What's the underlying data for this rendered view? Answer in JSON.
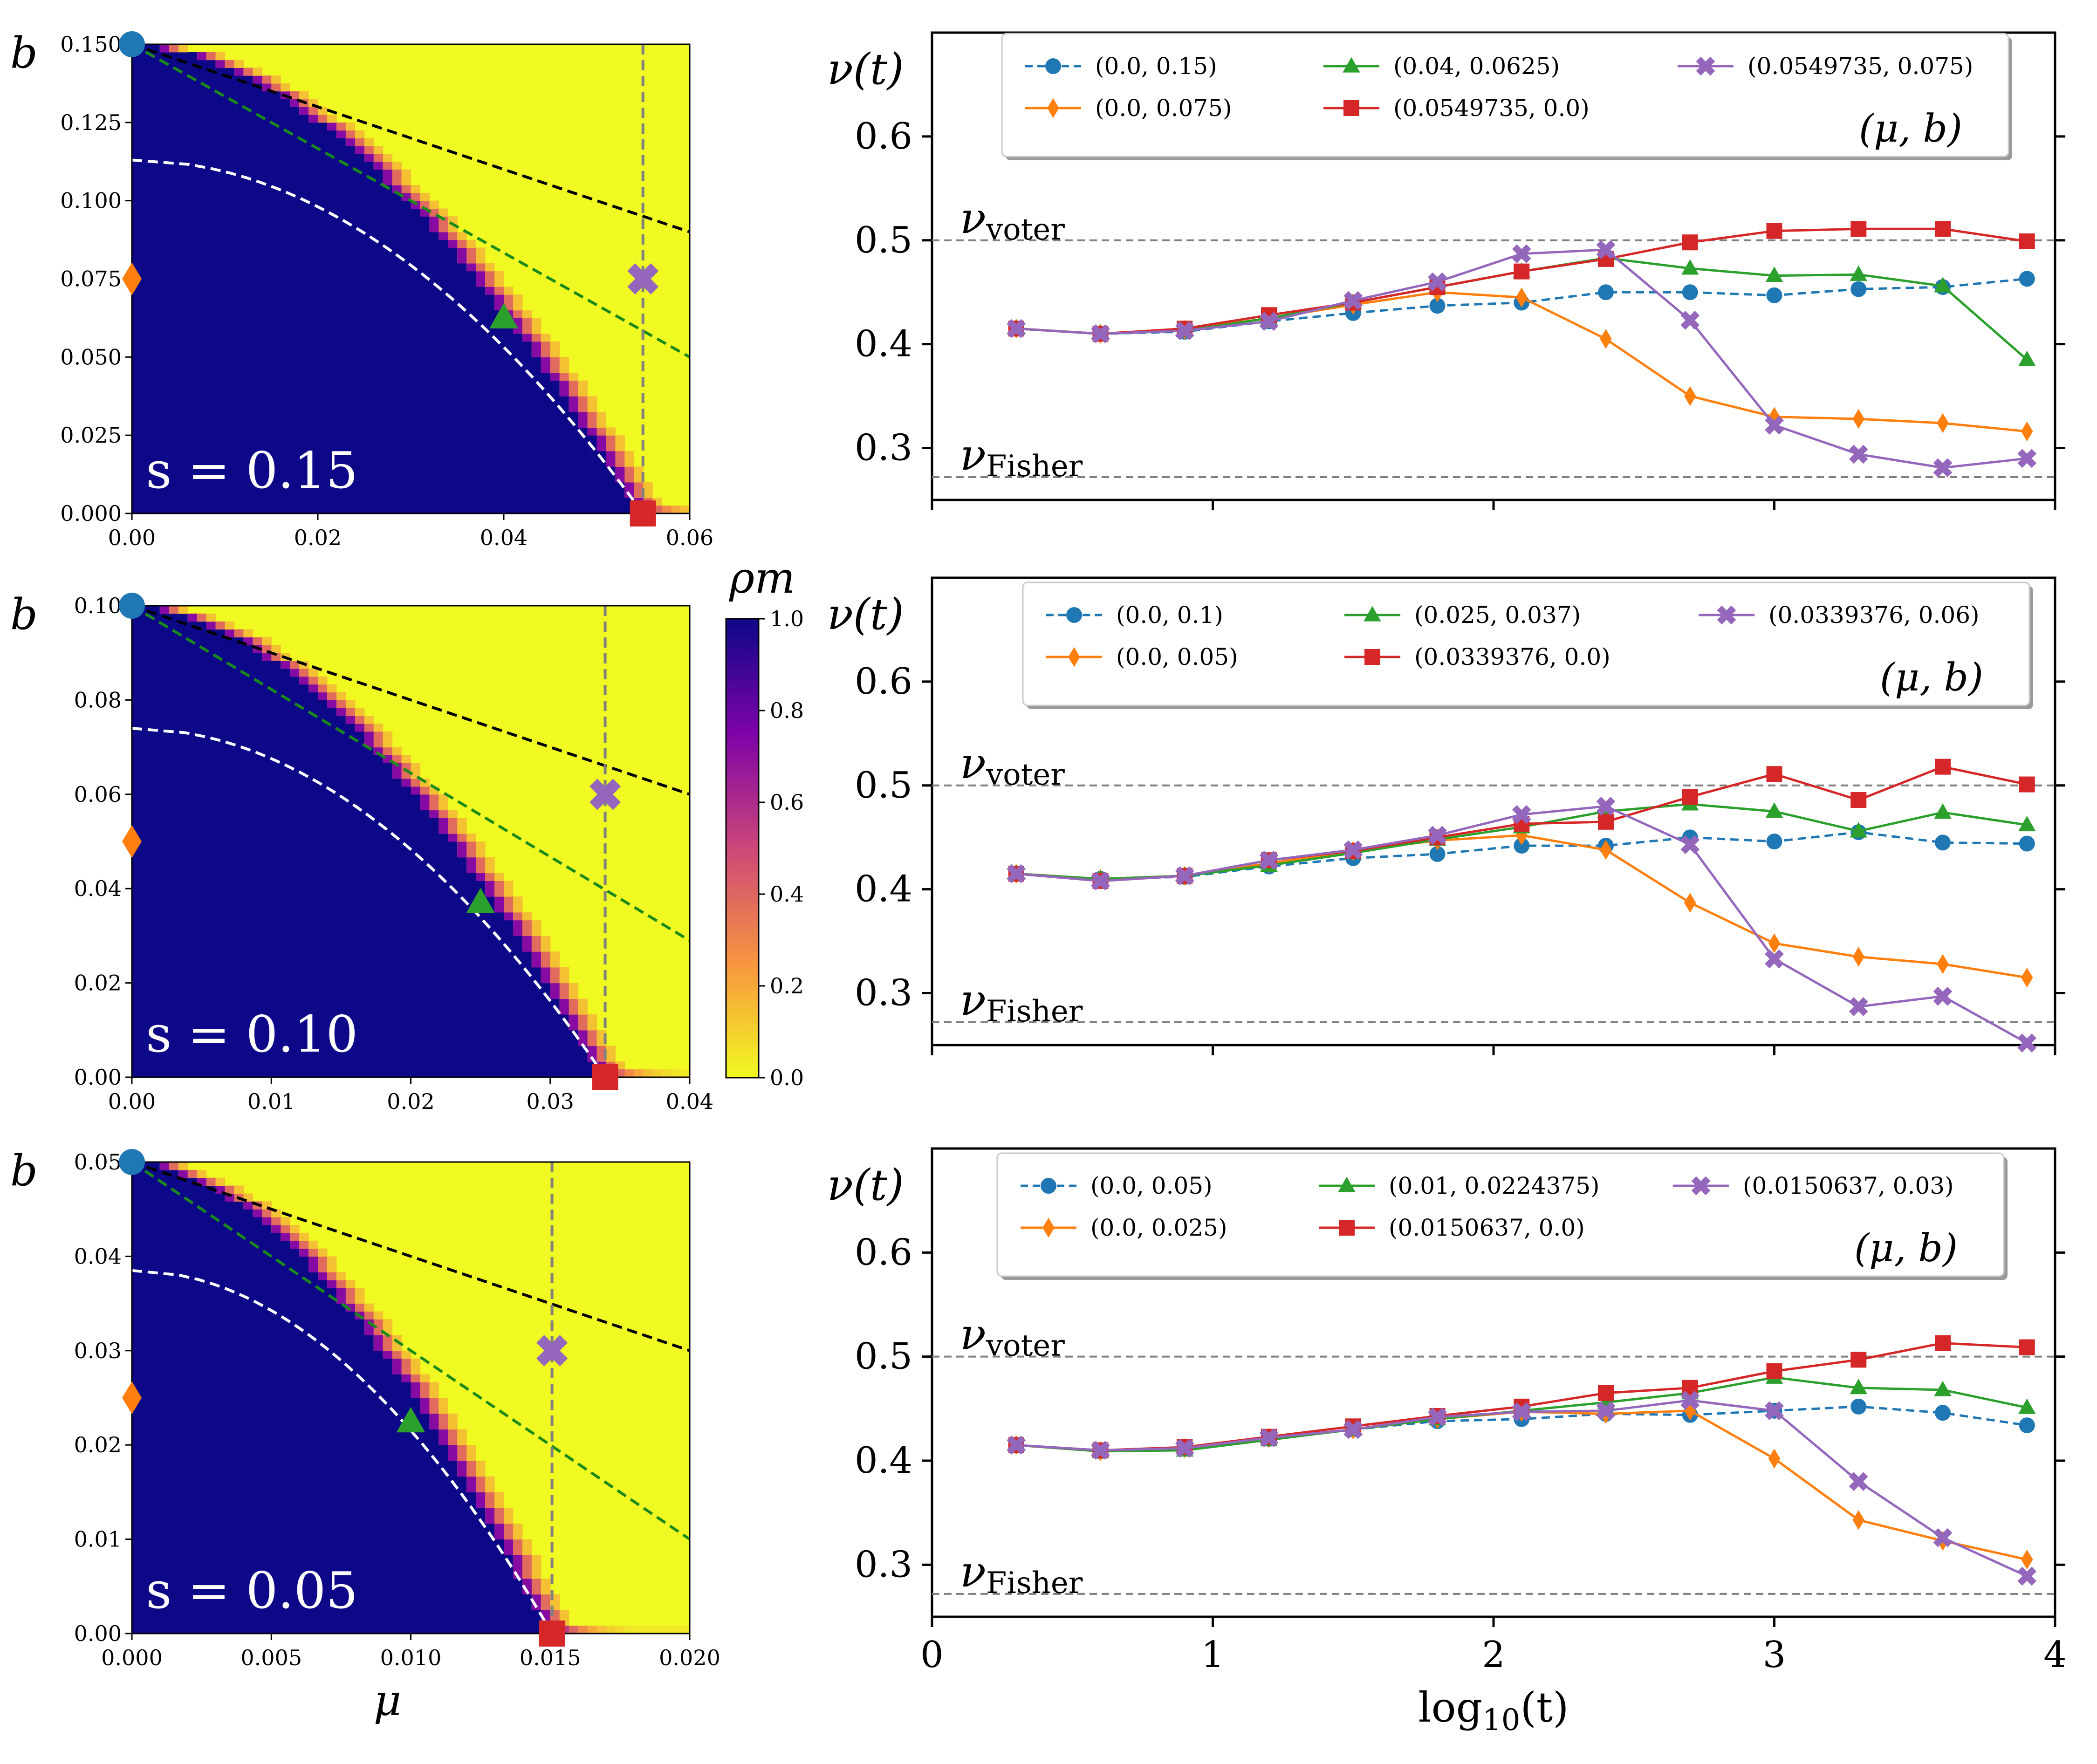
{
  "chart_data": [
    {
      "type": "heatmap",
      "id": "heat0",
      "ylabel": "b",
      "xlabel": "",
      "annotation": "s = 0.15",
      "s_value": "0.15",
      "xlim": [
        0,
        0.06
      ],
      "ylim": [
        0,
        0.15
      ],
      "xticks": [
        "0.00",
        "0.02",
        "0.04",
        "0.06"
      ],
      "yticks": [
        "0.000",
        "0.025",
        "0.050",
        "0.075",
        "0.100",
        "0.125",
        "0.150"
      ],
      "boundary_mu_at_b0": 0.0549735,
      "white_dashed": {
        "b0": 0.113,
        "mu_c": 0.0549735
      },
      "black_dashed": {
        "from": [
          0,
          0.15
        ],
        "to": [
          0.06,
          0.09
        ]
      },
      "green_dashed": {
        "from": [
          0,
          0.15
        ],
        "to": [
          0.06,
          0.05
        ]
      },
      "gray_vline_mu": 0.0549735,
      "markers": [
        {
          "shape": "circle",
          "color": "#1f77b4",
          "mu": 0.0,
          "b": 0.15
        },
        {
          "shape": "diamond",
          "color": "#ff7f0e",
          "mu": 0.0,
          "b": 0.075
        },
        {
          "shape": "triangle",
          "color": "#2ca02c",
          "mu": 0.04,
          "b": 0.0625
        },
        {
          "shape": "square",
          "color": "#d62728",
          "mu": 0.0549735,
          "b": 0.0
        },
        {
          "shape": "x",
          "color": "#9467bd",
          "mu": 0.0549735,
          "b": 0.075
        }
      ]
    },
    {
      "type": "heatmap",
      "id": "heat1",
      "ylabel": "b",
      "xlabel": "",
      "annotation": "s = 0.10",
      "s_value": "0.10",
      "xlim": [
        0,
        0.04
      ],
      "ylim": [
        0,
        0.1
      ],
      "xticks": [
        "0.00",
        "0.01",
        "0.02",
        "0.03",
        "0.04"
      ],
      "yticks": [
        "0.00",
        "0.02",
        "0.04",
        "0.06",
        "0.08",
        "0.10"
      ],
      "boundary_mu_at_b0": 0.0339376,
      "white_dashed": {
        "b0": 0.074,
        "mu_c": 0.0339376
      },
      "black_dashed": {
        "from": [
          0,
          0.1
        ],
        "to": [
          0.04,
          0.06
        ]
      },
      "green_dashed": {
        "from": [
          0,
          0.1
        ],
        "to": [
          0.04,
          0.029
        ]
      },
      "gray_vline_mu": 0.0339376,
      "markers": [
        {
          "shape": "circle",
          "color": "#1f77b4",
          "mu": 0.0,
          "b": 0.1
        },
        {
          "shape": "diamond",
          "color": "#ff7f0e",
          "mu": 0.0,
          "b": 0.05
        },
        {
          "shape": "triangle",
          "color": "#2ca02c",
          "mu": 0.025,
          "b": 0.037
        },
        {
          "shape": "square",
          "color": "#d62728",
          "mu": 0.0339376,
          "b": 0.0
        },
        {
          "shape": "x",
          "color": "#9467bd",
          "mu": 0.0339376,
          "b": 0.06
        }
      ]
    },
    {
      "type": "heatmap",
      "id": "heat2",
      "ylabel": "b",
      "xlabel": "μ",
      "annotation": "s = 0.05",
      "s_value": "0.05",
      "xlim": [
        0,
        0.02
      ],
      "ylim": [
        0,
        0.05
      ],
      "xticks": [
        "0.000",
        "0.005",
        "0.010",
        "0.015",
        "0.020"
      ],
      "yticks": [
        "0.00",
        "0.01",
        "0.02",
        "0.03",
        "0.04",
        "0.05"
      ],
      "boundary_mu_at_b0": 0.0150637,
      "white_dashed": {
        "b0": 0.0385,
        "mu_c": 0.0150637
      },
      "black_dashed": {
        "from": [
          0,
          0.05
        ],
        "to": [
          0.02,
          0.03
        ]
      },
      "green_dashed": {
        "from": [
          0,
          0.05
        ],
        "to": [
          0.02,
          0.01
        ]
      },
      "gray_vline_mu": 0.0150637,
      "markers": [
        {
          "shape": "circle",
          "color": "#1f77b4",
          "mu": 0.0,
          "b": 0.05
        },
        {
          "shape": "diamond",
          "color": "#ff7f0e",
          "mu": 0.0,
          "b": 0.025
        },
        {
          "shape": "triangle",
          "color": "#2ca02c",
          "mu": 0.01,
          "b": 0.0224375
        },
        {
          "shape": "square",
          "color": "#d62728",
          "mu": 0.0150637,
          "b": 0.0
        },
        {
          "shape": "x",
          "color": "#9467bd",
          "mu": 0.0150637,
          "b": 0.03
        }
      ]
    },
    {
      "type": "line",
      "id": "line0",
      "ylabel": "ν(t)",
      "xlabel": "",
      "xlim": [
        0,
        4
      ],
      "ylim": [
        0.25,
        0.7
      ],
      "yticks": [
        "0.3",
        "0.4",
        "0.5",
        "0.6"
      ],
      "legend_title": "(μ, b)",
      "hlines": [
        {
          "y": 0.5,
          "label": "voter"
        },
        {
          "y": 0.272,
          "label": "Fisher"
        }
      ],
      "x": [
        0.3,
        0.6,
        0.9,
        1.2,
        1.5,
        1.8,
        2.1,
        2.4,
        2.7,
        3.0,
        3.3,
        3.6,
        3.9
      ],
      "series": [
        {
          "name": "(0.0, 0.15)",
          "color": "#1f77b4",
          "marker": "circle",
          "dashed": true,
          "values": [
            0.415,
            0.41,
            0.412,
            0.422,
            0.43,
            0.437,
            0.44,
            0.45,
            0.45,
            0.447,
            0.453,
            0.455,
            0.463
          ]
        },
        {
          "name": "(0.0, 0.075)",
          "color": "#ff7f0e",
          "marker": "diamond",
          "dashed": false,
          "values": [
            0.415,
            0.41,
            0.414,
            0.425,
            0.438,
            0.45,
            0.445,
            0.405,
            0.35,
            0.33,
            0.328,
            0.324,
            0.316
          ]
        },
        {
          "name": "(0.04, 0.0625)",
          "color": "#2ca02c",
          "marker": "triangle",
          "dashed": false,
          "values": [
            0.415,
            0.41,
            0.413,
            0.425,
            0.44,
            0.455,
            0.47,
            0.483,
            0.473,
            0.466,
            0.467,
            0.456,
            0.385
          ]
        },
        {
          "name": "(0.0549735, 0.0)",
          "color": "#d62728",
          "marker": "square",
          "dashed": false,
          "values": [
            0.415,
            0.41,
            0.415,
            0.428,
            0.44,
            0.455,
            0.47,
            0.482,
            0.498,
            0.509,
            0.511,
            0.511,
            0.499
          ]
        },
        {
          "name": "(0.0549735, 0.075)",
          "color": "#9467bd",
          "marker": "x",
          "dashed": false,
          "values": [
            0.415,
            0.41,
            0.413,
            0.422,
            0.442,
            0.46,
            0.487,
            0.491,
            0.423,
            0.322,
            0.294,
            0.281,
            0.29
          ]
        }
      ]
    },
    {
      "type": "line",
      "id": "line1",
      "ylabel": "ν(t)",
      "xlabel": "",
      "xlim": [
        0,
        4
      ],
      "ylim": [
        0.25,
        0.7
      ],
      "yticks": [
        "0.3",
        "0.4",
        "0.5",
        "0.6"
      ],
      "legend_title": "(μ, b)",
      "hlines": [
        {
          "y": 0.5,
          "label": "voter"
        },
        {
          "y": 0.272,
          "label": "Fisher"
        }
      ],
      "x": [
        0.3,
        0.6,
        0.9,
        1.2,
        1.5,
        1.8,
        2.1,
        2.4,
        2.7,
        3.0,
        3.3,
        3.6,
        3.9
      ],
      "series": [
        {
          "name": "(0.0, 0.1)",
          "color": "#1f77b4",
          "marker": "circle",
          "dashed": true,
          "values": [
            0.415,
            0.41,
            0.412,
            0.422,
            0.43,
            0.434,
            0.442,
            0.442,
            0.45,
            0.446,
            0.455,
            0.445,
            0.444
          ]
        },
        {
          "name": "(0.0, 0.05)",
          "color": "#ff7f0e",
          "marker": "diamond",
          "dashed": false,
          "values": [
            0.415,
            0.41,
            0.413,
            0.425,
            0.437,
            0.447,
            0.452,
            0.438,
            0.387,
            0.348,
            0.335,
            0.328,
            0.315
          ]
        },
        {
          "name": "(0.025, 0.037)",
          "color": "#2ca02c",
          "marker": "triangle",
          "dashed": false,
          "values": [
            0.415,
            0.41,
            0.413,
            0.423,
            0.435,
            0.448,
            0.46,
            0.475,
            0.482,
            0.475,
            0.456,
            0.474,
            0.462
          ]
        },
        {
          "name": "(0.0339376, 0.0)",
          "color": "#d62728",
          "marker": "square",
          "dashed": false,
          "values": [
            0.415,
            0.408,
            0.413,
            0.428,
            0.437,
            0.45,
            0.463,
            0.465,
            0.489,
            0.511,
            0.486,
            0.518,
            0.501
          ]
        },
        {
          "name": "(0.0339376, 0.06)",
          "color": "#9467bd",
          "marker": "x",
          "dashed": false,
          "values": [
            0.415,
            0.408,
            0.413,
            0.428,
            0.438,
            0.452,
            0.472,
            0.48,
            0.443,
            0.333,
            0.287,
            0.297,
            0.252
          ]
        }
      ]
    },
    {
      "type": "line",
      "id": "line2",
      "ylabel": "ν(t)",
      "xlabel": "log10(t)",
      "xlim": [
        0,
        4
      ],
      "ylim": [
        0.25,
        0.7
      ],
      "xticks": [
        "0",
        "1",
        "2",
        "3",
        "4"
      ],
      "yticks": [
        "0.3",
        "0.4",
        "0.5",
        "0.6"
      ],
      "legend_title": "(μ, b)",
      "hlines": [
        {
          "y": 0.5,
          "label": "voter"
        },
        {
          "y": 0.272,
          "label": "Fisher"
        }
      ],
      "x": [
        0.3,
        0.6,
        0.9,
        1.2,
        1.5,
        1.8,
        2.1,
        2.4,
        2.7,
        3.0,
        3.3,
        3.6,
        3.9
      ],
      "series": [
        {
          "name": "(0.0, 0.05)",
          "color": "#1f77b4",
          "marker": "circle",
          "dashed": true,
          "values": [
            0.415,
            0.409,
            0.412,
            0.421,
            0.43,
            0.438,
            0.44,
            0.445,
            0.444,
            0.448,
            0.452,
            0.446,
            0.434
          ]
        },
        {
          "name": "(0.0, 0.025)",
          "color": "#ff7f0e",
          "marker": "diamond",
          "dashed": false,
          "values": [
            0.415,
            0.409,
            0.412,
            0.422,
            0.43,
            0.44,
            0.447,
            0.445,
            0.448,
            0.402,
            0.343,
            0.323,
            0.305
          ]
        },
        {
          "name": "(0.01, 0.0224375)",
          "color": "#2ca02c",
          "marker": "triangle",
          "dashed": false,
          "values": [
            0.415,
            0.409,
            0.41,
            0.42,
            0.43,
            0.44,
            0.448,
            0.456,
            0.465,
            0.48,
            0.47,
            0.468,
            0.451
          ]
        },
        {
          "name": "(0.0150637, 0.0)",
          "color": "#d62728",
          "marker": "square",
          "dashed": false,
          "values": [
            0.415,
            0.41,
            0.413,
            0.423,
            0.433,
            0.443,
            0.452,
            0.465,
            0.47,
            0.486,
            0.497,
            0.513,
            0.509
          ]
        },
        {
          "name": "(0.0150637, 0.03)",
          "color": "#9467bd",
          "marker": "x",
          "dashed": false,
          "values": [
            0.415,
            0.41,
            0.412,
            0.422,
            0.43,
            0.442,
            0.447,
            0.448,
            0.458,
            0.448,
            0.38,
            0.326,
            0.289
          ]
        }
      ]
    }
  ],
  "colorbar": {
    "label": "ρm",
    "ticks": [
      "0.0",
      "0.2",
      "0.4",
      "0.6",
      "0.8",
      "1.0"
    ],
    "colormap": [
      "#f0f921",
      "#f89540",
      "#cc4778",
      "#7e03a8",
      "#0d0887"
    ]
  },
  "colors": {
    "blue": "#1f77b4",
    "orange": "#ff7f0e",
    "green": "#2ca02c",
    "red": "#d62728",
    "purple": "#9467bd",
    "absorbed": "#0d0887",
    "extinct": "#f0f921"
  }
}
